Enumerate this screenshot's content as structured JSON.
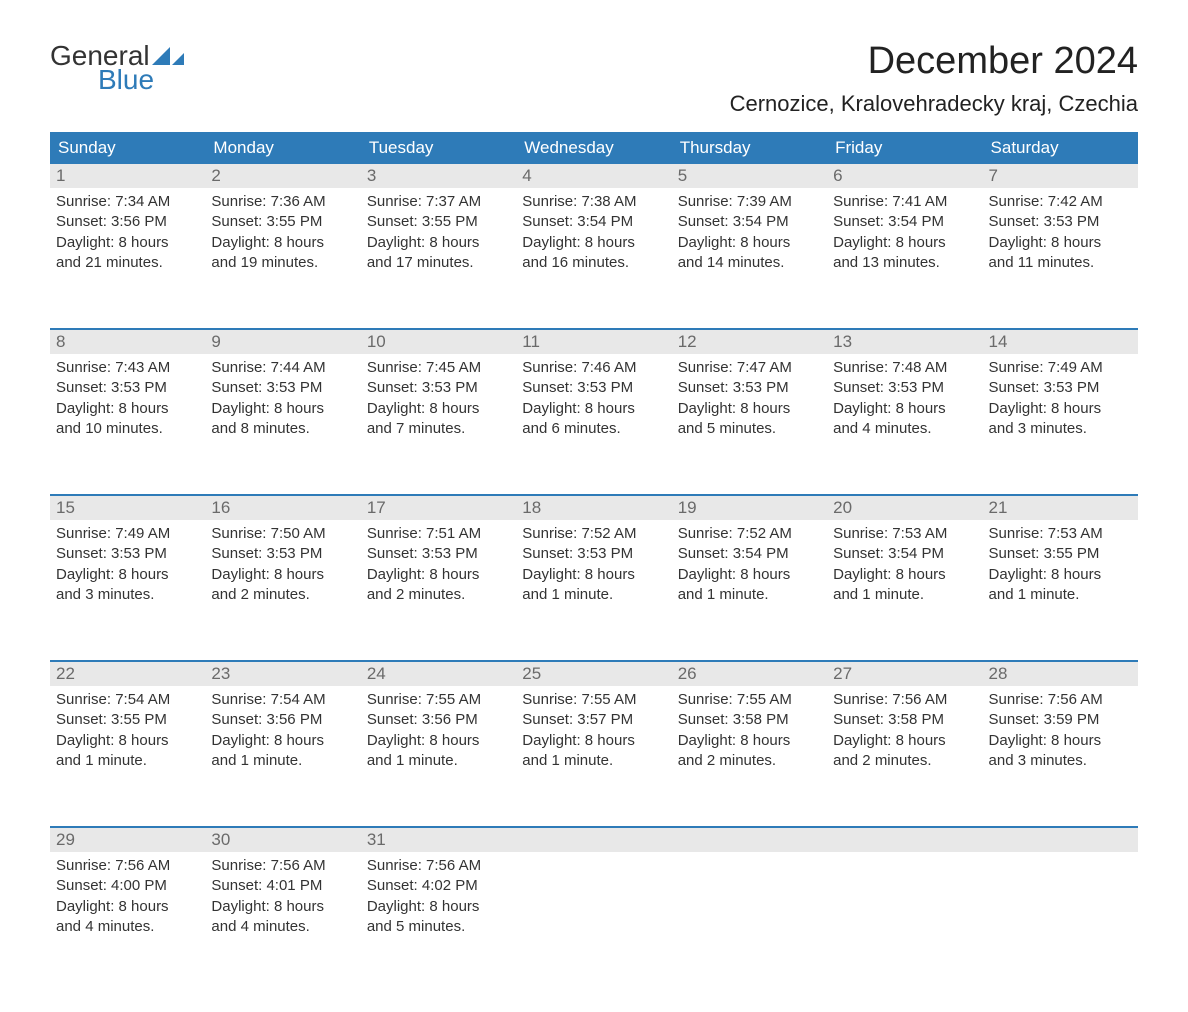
{
  "logo": {
    "text_general": "General",
    "text_blue": "Blue",
    "arrow_color": "#2e7bb8"
  },
  "title": "December 2024",
  "location": "Cernozice, Kralovehradecky kraj, Czechia",
  "colors": {
    "header_bg": "#2e7bb8",
    "header_text": "#ffffff",
    "day_number_bg": "#e8e8e8",
    "day_number_text": "#6a6a6a",
    "body_text": "#333333",
    "week_divider": "#2e7bb8",
    "logo_blue": "#2e7bb8",
    "logo_general": "#333333"
  },
  "day_headers": [
    "Sunday",
    "Monday",
    "Tuesday",
    "Wednesday",
    "Thursday",
    "Friday",
    "Saturday"
  ],
  "weeks": [
    [
      {
        "n": "1",
        "sunrise": "Sunrise: 7:34 AM",
        "sunset": "Sunset: 3:56 PM",
        "d1": "Daylight: 8 hours",
        "d2": "and 21 minutes."
      },
      {
        "n": "2",
        "sunrise": "Sunrise: 7:36 AM",
        "sunset": "Sunset: 3:55 PM",
        "d1": "Daylight: 8 hours",
        "d2": "and 19 minutes."
      },
      {
        "n": "3",
        "sunrise": "Sunrise: 7:37 AM",
        "sunset": "Sunset: 3:55 PM",
        "d1": "Daylight: 8 hours",
        "d2": "and 17 minutes."
      },
      {
        "n": "4",
        "sunrise": "Sunrise: 7:38 AM",
        "sunset": "Sunset: 3:54 PM",
        "d1": "Daylight: 8 hours",
        "d2": "and 16 minutes."
      },
      {
        "n": "5",
        "sunrise": "Sunrise: 7:39 AM",
        "sunset": "Sunset: 3:54 PM",
        "d1": "Daylight: 8 hours",
        "d2": "and 14 minutes."
      },
      {
        "n": "6",
        "sunrise": "Sunrise: 7:41 AM",
        "sunset": "Sunset: 3:54 PM",
        "d1": "Daylight: 8 hours",
        "d2": "and 13 minutes."
      },
      {
        "n": "7",
        "sunrise": "Sunrise: 7:42 AM",
        "sunset": "Sunset: 3:53 PM",
        "d1": "Daylight: 8 hours",
        "d2": "and 11 minutes."
      }
    ],
    [
      {
        "n": "8",
        "sunrise": "Sunrise: 7:43 AM",
        "sunset": "Sunset: 3:53 PM",
        "d1": "Daylight: 8 hours",
        "d2": "and 10 minutes."
      },
      {
        "n": "9",
        "sunrise": "Sunrise: 7:44 AM",
        "sunset": "Sunset: 3:53 PM",
        "d1": "Daylight: 8 hours",
        "d2": "and 8 minutes."
      },
      {
        "n": "10",
        "sunrise": "Sunrise: 7:45 AM",
        "sunset": "Sunset: 3:53 PM",
        "d1": "Daylight: 8 hours",
        "d2": "and 7 minutes."
      },
      {
        "n": "11",
        "sunrise": "Sunrise: 7:46 AM",
        "sunset": "Sunset: 3:53 PM",
        "d1": "Daylight: 8 hours",
        "d2": "and 6 minutes."
      },
      {
        "n": "12",
        "sunrise": "Sunrise: 7:47 AM",
        "sunset": "Sunset: 3:53 PM",
        "d1": "Daylight: 8 hours",
        "d2": "and 5 minutes."
      },
      {
        "n": "13",
        "sunrise": "Sunrise: 7:48 AM",
        "sunset": "Sunset: 3:53 PM",
        "d1": "Daylight: 8 hours",
        "d2": "and 4 minutes."
      },
      {
        "n": "14",
        "sunrise": "Sunrise: 7:49 AM",
        "sunset": "Sunset: 3:53 PM",
        "d1": "Daylight: 8 hours",
        "d2": "and 3 minutes."
      }
    ],
    [
      {
        "n": "15",
        "sunrise": "Sunrise: 7:49 AM",
        "sunset": "Sunset: 3:53 PM",
        "d1": "Daylight: 8 hours",
        "d2": "and 3 minutes."
      },
      {
        "n": "16",
        "sunrise": "Sunrise: 7:50 AM",
        "sunset": "Sunset: 3:53 PM",
        "d1": "Daylight: 8 hours",
        "d2": "and 2 minutes."
      },
      {
        "n": "17",
        "sunrise": "Sunrise: 7:51 AM",
        "sunset": "Sunset: 3:53 PM",
        "d1": "Daylight: 8 hours",
        "d2": "and 2 minutes."
      },
      {
        "n": "18",
        "sunrise": "Sunrise: 7:52 AM",
        "sunset": "Sunset: 3:53 PM",
        "d1": "Daylight: 8 hours",
        "d2": "and 1 minute."
      },
      {
        "n": "19",
        "sunrise": "Sunrise: 7:52 AM",
        "sunset": "Sunset: 3:54 PM",
        "d1": "Daylight: 8 hours",
        "d2": "and 1 minute."
      },
      {
        "n": "20",
        "sunrise": "Sunrise: 7:53 AM",
        "sunset": "Sunset: 3:54 PM",
        "d1": "Daylight: 8 hours",
        "d2": "and 1 minute."
      },
      {
        "n": "21",
        "sunrise": "Sunrise: 7:53 AM",
        "sunset": "Sunset: 3:55 PM",
        "d1": "Daylight: 8 hours",
        "d2": "and 1 minute."
      }
    ],
    [
      {
        "n": "22",
        "sunrise": "Sunrise: 7:54 AM",
        "sunset": "Sunset: 3:55 PM",
        "d1": "Daylight: 8 hours",
        "d2": "and 1 minute."
      },
      {
        "n": "23",
        "sunrise": "Sunrise: 7:54 AM",
        "sunset": "Sunset: 3:56 PM",
        "d1": "Daylight: 8 hours",
        "d2": "and 1 minute."
      },
      {
        "n": "24",
        "sunrise": "Sunrise: 7:55 AM",
        "sunset": "Sunset: 3:56 PM",
        "d1": "Daylight: 8 hours",
        "d2": "and 1 minute."
      },
      {
        "n": "25",
        "sunrise": "Sunrise: 7:55 AM",
        "sunset": "Sunset: 3:57 PM",
        "d1": "Daylight: 8 hours",
        "d2": "and 1 minute."
      },
      {
        "n": "26",
        "sunrise": "Sunrise: 7:55 AM",
        "sunset": "Sunset: 3:58 PM",
        "d1": "Daylight: 8 hours",
        "d2": "and 2 minutes."
      },
      {
        "n": "27",
        "sunrise": "Sunrise: 7:56 AM",
        "sunset": "Sunset: 3:58 PM",
        "d1": "Daylight: 8 hours",
        "d2": "and 2 minutes."
      },
      {
        "n": "28",
        "sunrise": "Sunrise: 7:56 AM",
        "sunset": "Sunset: 3:59 PM",
        "d1": "Daylight: 8 hours",
        "d2": "and 3 minutes."
      }
    ],
    [
      {
        "n": "29",
        "sunrise": "Sunrise: 7:56 AM",
        "sunset": "Sunset: 4:00 PM",
        "d1": "Daylight: 8 hours",
        "d2": "and 4 minutes."
      },
      {
        "n": "30",
        "sunrise": "Sunrise: 7:56 AM",
        "sunset": "Sunset: 4:01 PM",
        "d1": "Daylight: 8 hours",
        "d2": "and 4 minutes."
      },
      {
        "n": "31",
        "sunrise": "Sunrise: 7:56 AM",
        "sunset": "Sunset: 4:02 PM",
        "d1": "Daylight: 8 hours",
        "d2": "and 5 minutes."
      },
      null,
      null,
      null,
      null
    ]
  ]
}
